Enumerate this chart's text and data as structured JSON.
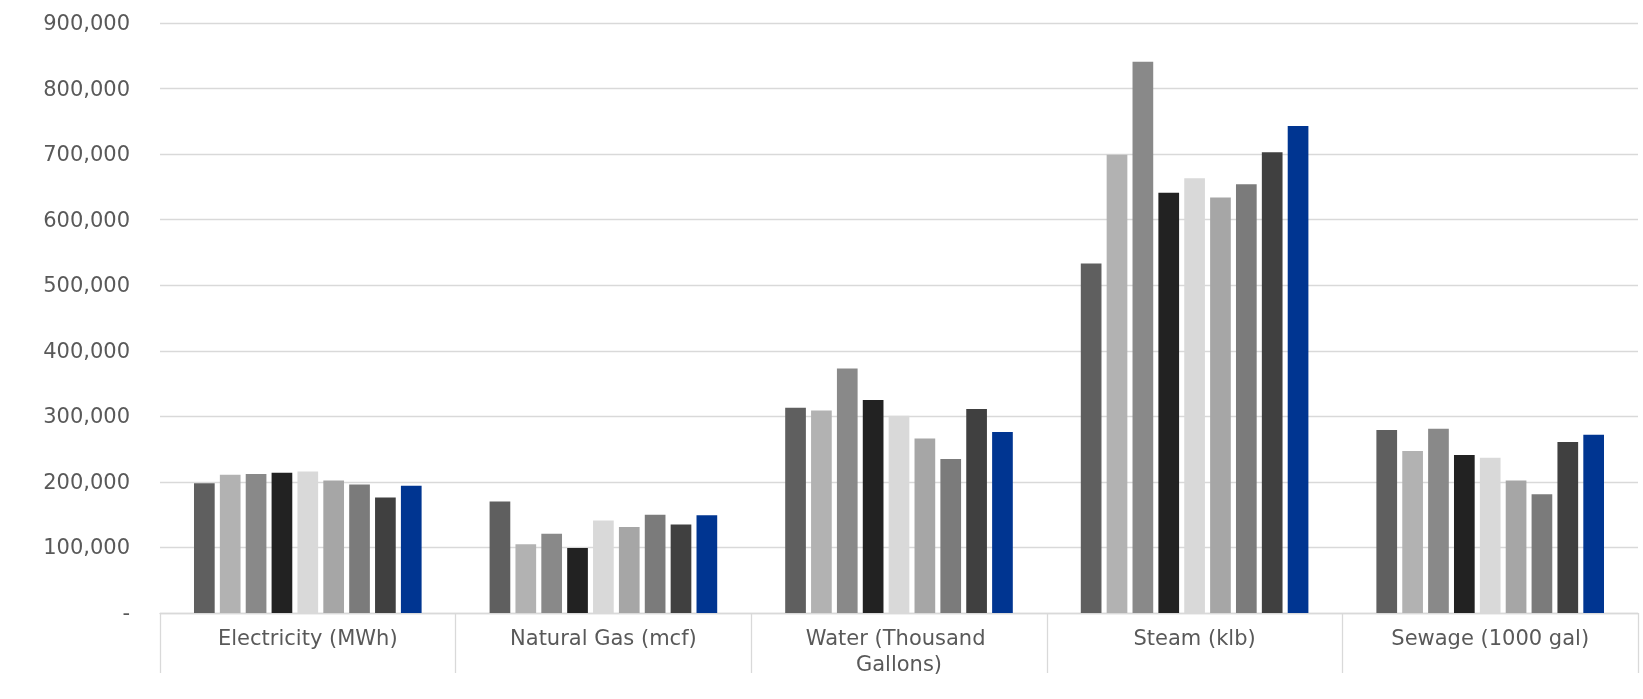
{
  "chart_data": {
    "type": "bar",
    "categories": [
      "Electricity (MWh)",
      "Natural Gas (mcf)",
      "Water (Thousand Gallons)",
      "Steam (klb)",
      "Sewage (1000 gal)"
    ],
    "series": [
      {
        "color": "#5f5f5f",
        "values": [
          198000,
          170000,
          313000,
          533000,
          279000
        ]
      },
      {
        "color": "#b2b2b2",
        "values": [
          211000,
          105000,
          309000,
          699000,
          247000
        ]
      },
      {
        "color": "#898989",
        "values": [
          212000,
          121000,
          373000,
          841000,
          281000
        ]
      },
      {
        "color": "#222222",
        "values": [
          214000,
          99000,
          325000,
          641000,
          241000
        ]
      },
      {
        "color": "#d9d9d9",
        "values": [
          216000,
          141000,
          301000,
          663000,
          237000
        ]
      },
      {
        "color": "#a6a6a6",
        "values": [
          202000,
          131000,
          266000,
          634000,
          202000
        ]
      },
      {
        "color": "#7b7b7b",
        "values": [
          196000,
          150000,
          235000,
          654000,
          181000
        ]
      },
      {
        "color": "#404040",
        "values": [
          176000,
          135000,
          311000,
          703000,
          261000
        ]
      },
      {
        "color": "#003591",
        "values": [
          194000,
          149000,
          276000,
          743000,
          272000
        ]
      }
    ],
    "ylim": [
      0,
      900000
    ],
    "yticks": [
      {
        "value": 0,
        "label": "-"
      },
      {
        "value": 100000,
        "label": "100,000"
      },
      {
        "value": 200000,
        "label": "200,000"
      },
      {
        "value": 300000,
        "label": "300,000"
      },
      {
        "value": 400000,
        "label": "400,000"
      },
      {
        "value": 500000,
        "label": "500,000"
      },
      {
        "value": 600000,
        "label": "600,000"
      },
      {
        "value": 700000,
        "label": "700,000"
      },
      {
        "value": 800000,
        "label": "800,000"
      },
      {
        "value": 900000,
        "label": "900,000"
      }
    ],
    "grid": "y"
  }
}
